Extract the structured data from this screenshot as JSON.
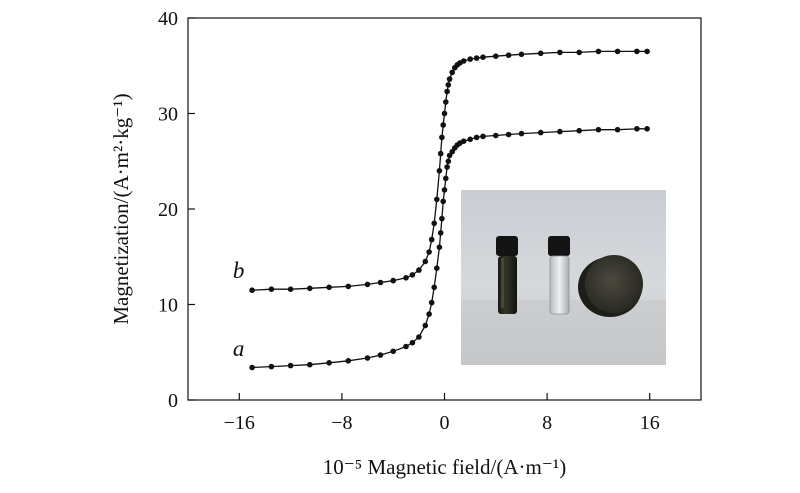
{
  "chart_data": {
    "type": "scatter",
    "xlabel": "10⁻⁵ Magnetic field/(A·m⁻¹)",
    "ylabel": "Magnetization/(A·m²·kg⁻¹)",
    "xlim": [
      -20,
      20
    ],
    "ylim": [
      0,
      40
    ],
    "xticks": [
      "−16",
      "−8",
      "0",
      "8",
      "16"
    ],
    "xtick_values": [
      -16,
      -8,
      0,
      8,
      16
    ],
    "yticks": [
      "0",
      "10",
      "20",
      "30",
      "40"
    ],
    "ytick_values": [
      0,
      10,
      20,
      30,
      40
    ],
    "grid": false,
    "line_color": "#111111",
    "series": [
      {
        "name": "a",
        "x": [
          -15.0,
          -13.5,
          -12.0,
          -10.5,
          -9.0,
          -7.5,
          -6.0,
          -5.0,
          -4.0,
          -3.0,
          -2.5,
          -2.0,
          -1.5,
          -1.2,
          -1.0,
          -0.8,
          -0.6,
          -0.4,
          -0.3,
          -0.2,
          -0.1,
          0.0,
          0.1,
          0.2,
          0.3,
          0.4,
          0.6,
          0.8,
          1.0,
          1.2,
          1.5,
          2.0,
          2.5,
          3.0,
          4.0,
          5.0,
          6.0,
          7.5,
          9.0,
          10.5,
          12.0,
          13.5,
          15.0,
          15.8
        ],
        "y": [
          3.4,
          3.5,
          3.6,
          3.7,
          3.9,
          4.1,
          4.4,
          4.7,
          5.1,
          5.6,
          6.0,
          6.6,
          7.8,
          9.0,
          10.2,
          11.8,
          13.8,
          16.0,
          17.5,
          19.0,
          20.8,
          22.0,
          23.2,
          24.4,
          25.0,
          25.6,
          26.0,
          26.4,
          26.7,
          26.9,
          27.1,
          27.3,
          27.5,
          27.6,
          27.7,
          27.8,
          27.9,
          28.0,
          28.1,
          28.2,
          28.3,
          28.3,
          28.4,
          28.4
        ]
      },
      {
        "name": "b",
        "x": [
          -15.0,
          -13.5,
          -12.0,
          -10.5,
          -9.0,
          -7.5,
          -6.0,
          -5.0,
          -4.0,
          -3.0,
          -2.5,
          -2.0,
          -1.5,
          -1.2,
          -1.0,
          -0.8,
          -0.6,
          -0.4,
          -0.3,
          -0.2,
          -0.1,
          0.0,
          0.1,
          0.2,
          0.3,
          0.4,
          0.6,
          0.8,
          1.0,
          1.2,
          1.5,
          2.0,
          2.5,
          3.0,
          4.0,
          5.0,
          6.0,
          7.5,
          9.0,
          10.5,
          12.0,
          13.5,
          15.0,
          15.8
        ],
        "y": [
          11.5,
          11.6,
          11.6,
          11.7,
          11.8,
          11.9,
          12.1,
          12.3,
          12.5,
          12.8,
          13.1,
          13.6,
          14.5,
          15.5,
          16.8,
          18.5,
          21.0,
          24.0,
          25.8,
          27.5,
          28.8,
          30.0,
          31.2,
          32.3,
          33.0,
          33.6,
          34.3,
          34.8,
          35.1,
          35.3,
          35.5,
          35.7,
          35.8,
          35.9,
          36.0,
          36.1,
          36.2,
          36.3,
          36.4,
          36.4,
          36.5,
          36.5,
          36.5,
          36.5
        ]
      }
    ],
    "annotations": [
      {
        "text": "a",
        "series": "a"
      },
      {
        "text": "b",
        "series": "b"
      }
    ],
    "inset": {
      "type": "photo",
      "content": "vials-and-magnetic-disc"
    }
  }
}
